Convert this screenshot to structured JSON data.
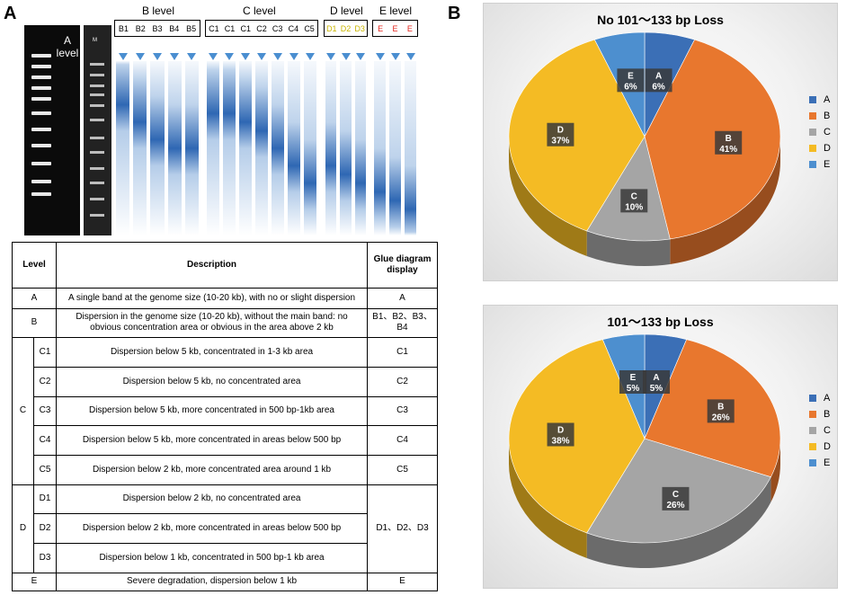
{
  "panel_a": {
    "letter": "A",
    "a_level_label_1": "A",
    "a_level_label_2": "level",
    "marker_label": "M",
    "level_headers": {
      "b": "B level",
      "c": "C level",
      "d": "D level",
      "e": "E level"
    },
    "lanes": {
      "b": [
        "B1",
        "B2",
        "B3",
        "B4",
        "B5"
      ],
      "c": [
        "C1",
        "C1",
        "C1",
        "C2",
        "C3",
        "C4",
        "C5"
      ],
      "d": [
        "D1",
        "D2",
        "D3"
      ],
      "e": [
        "E",
        "E",
        "E"
      ]
    },
    "lane_colors": {
      "d": "#c8b400",
      "e": "#e2231a"
    }
  },
  "table": {
    "headers": {
      "level": "Level",
      "description": "Description",
      "display": "Glue diagram display"
    },
    "rows": {
      "a": {
        "level": "A",
        "desc": "A single band at the genome size (10-20 kb), with no or slight dispersion",
        "display": "A"
      },
      "b": {
        "level": "B",
        "desc": "Dispersion in the genome size (10-20 kb), without the main band: no obvious concentration area or obvious in the area above 2 kb",
        "display": "B1、B2、B3、B4"
      },
      "c_group": "C",
      "c1": {
        "sub": "C1",
        "desc": "Dispersion below 5 kb, concentrated in 1-3 kb area",
        "display": "C1"
      },
      "c2": {
        "sub": "C2",
        "desc": "Dispersion below 5 kb, no concentrated area",
        "display": "C2"
      },
      "c3": {
        "sub": "C3",
        "desc": "Dispersion below 5 kb, more concentrated in 500 bp-1kb area",
        "display": "C3"
      },
      "c4": {
        "sub": "C4",
        "desc": "Dispersion below 5 kb, more concentrated in areas below 500 bp",
        "display": "C4"
      },
      "c5": {
        "sub": "C5",
        "desc": "Dispersion below 2 kb, more concentrated area around 1 kb",
        "display": "C5"
      },
      "d_group": "D",
      "d1": {
        "sub": "D1",
        "desc": "Dispersion below 2 kb, no concentrated area"
      },
      "d2": {
        "sub": "D2",
        "desc": "Dispersion below 2 kb, more concentrated in areas below 500 bp"
      },
      "d3": {
        "sub": "D3",
        "desc": "Dispersion below 1 kb, concentrated in 500 bp-1 kb area"
      },
      "d_display": "D1、D2、D3",
      "e": {
        "level": "E",
        "desc": "Severe degradation, dispersion below 1 kb",
        "display": "E"
      }
    }
  },
  "panel_b": {
    "letter": "B"
  },
  "chart_data": [
    {
      "type": "pie",
      "title": "No 101～133 bp Loss",
      "categories": [
        "A",
        "B",
        "C",
        "D",
        "E"
      ],
      "values": [
        6,
        41,
        10,
        37,
        6
      ],
      "labels": [
        "6%",
        "41%",
        "10%",
        "37%",
        "6%"
      ],
      "colors": [
        "#3b6fb6",
        "#e8772e",
        "#a5a5a5",
        "#f4bb24",
        "#4d8fcf"
      ],
      "legend": [
        "A",
        "B",
        "C",
        "D",
        "E"
      ]
    },
    {
      "type": "pie",
      "title": "101～133 bp Loss",
      "categories": [
        "A",
        "B",
        "C",
        "D",
        "E"
      ],
      "values": [
        5,
        26,
        26,
        38,
        5
      ],
      "labels": [
        "5%",
        "26%",
        "26%",
        "38%",
        "5%"
      ],
      "colors": [
        "#3b6fb6",
        "#e8772e",
        "#a5a5a5",
        "#f4bb24",
        "#4d8fcf"
      ],
      "legend": [
        "A",
        "B",
        "C",
        "D",
        "E"
      ]
    }
  ]
}
